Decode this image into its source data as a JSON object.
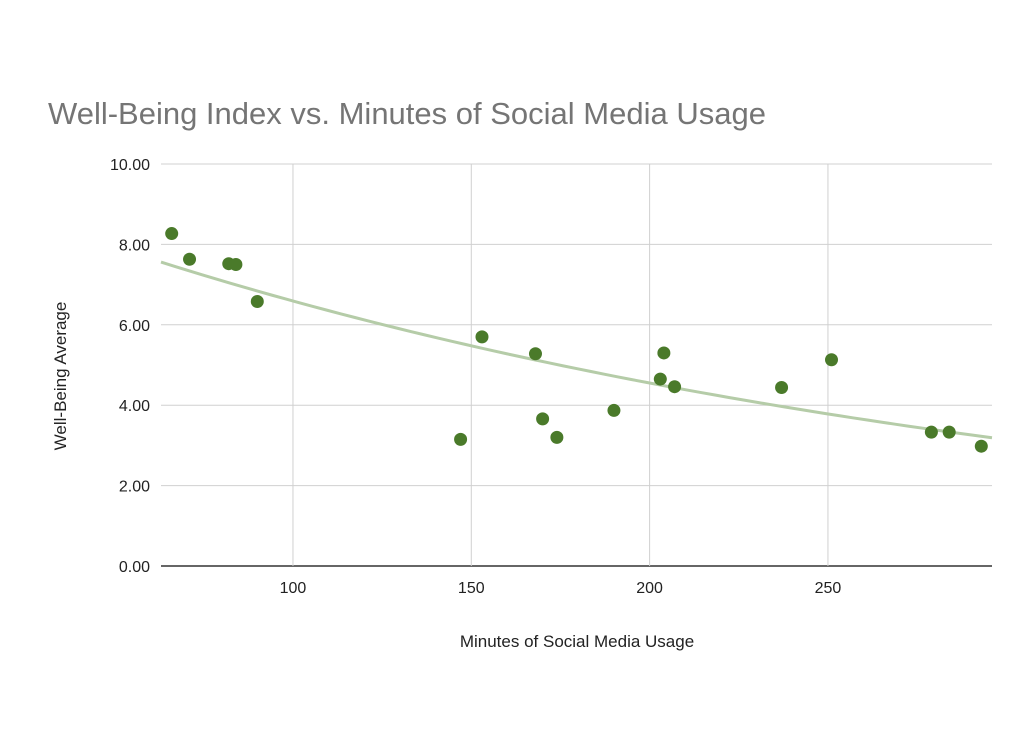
{
  "chart_data": {
    "type": "scatter",
    "title": "Well-Being Index vs. Minutes of Social Media Usage",
    "xlabel": "Minutes of Social Media Usage",
    "ylabel": "Well-Being Average",
    "xlim": [
      63,
      296
    ],
    "ylim": [
      0,
      10
    ],
    "x_ticks": [
      "100",
      "150",
      "200",
      "250"
    ],
    "x_tick_values": [
      100,
      150,
      200,
      250
    ],
    "y_ticks": [
      "0.00",
      "2.00",
      "4.00",
      "6.00",
      "8.00",
      "10.00"
    ],
    "y_tick_values": [
      0,
      2,
      4,
      6,
      8,
      10
    ],
    "grid": true,
    "legend": "none",
    "colors": {
      "points": "#4a7a2a",
      "trendline": "#b5cca8",
      "grid": "#d0d0d0",
      "axis": "#333333"
    },
    "trendline": {
      "type": "exponential",
      "x": [
        63,
        296
      ],
      "y": [
        7.56,
        3.19
      ]
    },
    "points": [
      {
        "x": 66,
        "y": 8.27
      },
      {
        "x": 71,
        "y": 7.63
      },
      {
        "x": 82,
        "y": 7.52
      },
      {
        "x": 84,
        "y": 7.5
      },
      {
        "x": 90,
        "y": 6.58
      },
      {
        "x": 147,
        "y": 3.15
      },
      {
        "x": 153,
        "y": 5.7
      },
      {
        "x": 168,
        "y": 5.28
      },
      {
        "x": 170,
        "y": 3.66
      },
      {
        "x": 174,
        "y": 3.2
      },
      {
        "x": 190,
        "y": 3.87
      },
      {
        "x": 203,
        "y": 4.65
      },
      {
        "x": 204,
        "y": 5.3
      },
      {
        "x": 207,
        "y": 4.46
      },
      {
        "x": 237,
        "y": 4.44
      },
      {
        "x": 251,
        "y": 5.13
      },
      {
        "x": 279,
        "y": 3.33
      },
      {
        "x": 284,
        "y": 3.33
      },
      {
        "x": 293,
        "y": 2.98
      }
    ]
  }
}
